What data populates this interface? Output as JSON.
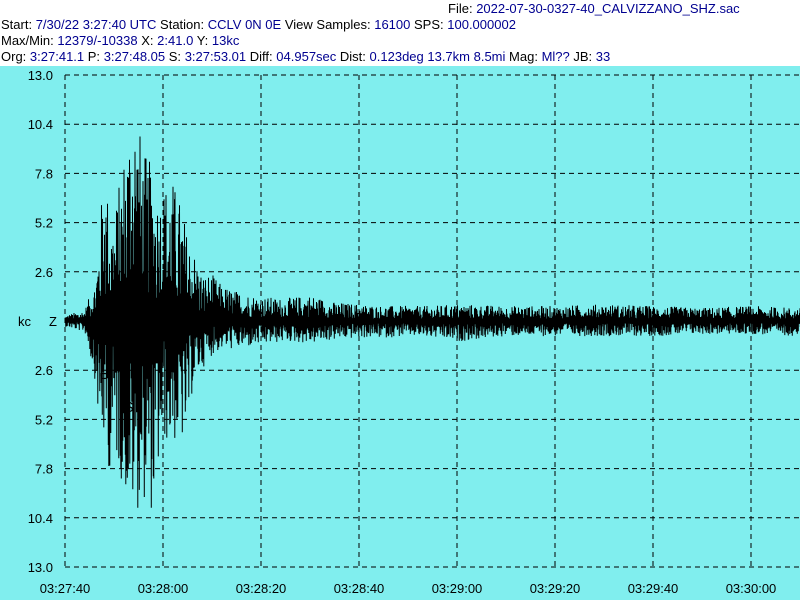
{
  "header": {
    "file_label": "File:",
    "file_name": "2022-07-30-0327-40_CALVIZZANO_SHZ.sac",
    "start_label": "Start:",
    "start_value": "7/30/22  3:27:40 UTC",
    "station_label": "Station:",
    "station_value": "CCLV 0N 0E",
    "view_samples_label": "View Samples:",
    "view_samples_value": "16100",
    "sps_label": "SPS:",
    "sps_value": "100.000002",
    "maxmin_label": "Max/Min:",
    "maxmin_value": "12379/-10338",
    "x_label": "X:",
    "x_value": "2:41.0",
    "y_label": "Y:",
    "y_value": "13kc",
    "org_label": "Org:",
    "org_value": "3:27:41.1",
    "p_label": "P:",
    "p_value": "3:27:48.05",
    "s_label": "S:",
    "s_value": "3:27:53.01",
    "diff_label": "Diff:",
    "diff_value": "04.957sec",
    "dist_label": "Dist:",
    "dist_value": "0.123deg 13.7km 8.5mi",
    "mag_label": "Mag:",
    "mag_value": "Ml??",
    "jb_label": "JB:",
    "jb_value": "33"
  },
  "colors": {
    "background": "#80eeee",
    "trace": "#000000",
    "grid": "#000000",
    "header_text": "#000090"
  },
  "chart_data": {
    "type": "line",
    "title": "",
    "xlabel": "",
    "ylabel": "kc",
    "channel": "Z",
    "xlim": [
      "03:27:40",
      "03:30:10"
    ],
    "ylim": [
      -13.0,
      13.0
    ],
    "x_tick_labels": [
      "03:27:40",
      "03:28:00",
      "03:28:20",
      "03:28:40",
      "03:29:00",
      "03:29:20",
      "03:29:40",
      "03:30:00"
    ],
    "y_tick_values": [
      13.0,
      10.4,
      7.8,
      5.2,
      2.6,
      0,
      -2.6,
      -5.2,
      -7.8,
      -10.4,
      -13.0
    ],
    "y_tick_labels": [
      "13.0",
      "10.4",
      "7.8",
      "5.2",
      "2.6",
      "",
      "2.6",
      "5.2",
      "7.8",
      "10.4",
      "13.0"
    ],
    "grid": true,
    "phase_markers": [
      {
        "label": "P",
        "time": "03:27:48.05"
      },
      {
        "label": "S",
        "time": "03:27:53.01"
      }
    ],
    "series": [
      {
        "x": [
          "03:27:40",
          "03:27:44",
          "03:27:46",
          "03:27:47",
          "03:27:48",
          "03:27:49",
          "03:27:50",
          "03:27:52",
          "03:27:54",
          "03:27:56",
          "03:27:58",
          "03:27:59",
          "03:28:00",
          "03:28:02",
          "03:28:04",
          "03:28:05",
          "03:28:06",
          "03:28:08",
          "03:28:10",
          "03:28:12",
          "03:28:15",
          "03:28:20",
          "03:28:25",
          "03:28:30",
          "03:28:35",
          "03:28:40",
          "03:28:45",
          "03:28:50",
          "03:28:55",
          "03:29:00",
          "03:29:10",
          "03:29:20",
          "03:29:30",
          "03:29:40",
          "03:29:50",
          "03:30:00",
          "03:30:10"
        ],
        "high": [
          0.3,
          0.6,
          2.0,
          4.5,
          8.7,
          6.0,
          5.5,
          9.0,
          12.3,
          9.0,
          8.2,
          6.8,
          7.4,
          7.5,
          6.0,
          4.5,
          4.0,
          2.5,
          2.5,
          1.9,
          1.6,
          1.3,
          1.2,
          1.4,
          1.0,
          0.9,
          0.8,
          0.8,
          0.8,
          0.9,
          0.8,
          0.8,
          0.9,
          0.8,
          0.7,
          0.8,
          0.7
        ],
        "low": [
          -0.3,
          -0.6,
          -3.0,
          -6.0,
          -6.7,
          -8.0,
          -7.0,
          -9.0,
          -10.3,
          -9.5,
          -10.3,
          -8.0,
          -6.5,
          -6.5,
          -6.5,
          -6.0,
          -3.5,
          -2.5,
          -1.8,
          -1.5,
          -1.5,
          -1.3,
          -1.1,
          -1.2,
          -1.0,
          -0.9,
          -0.9,
          -0.8,
          -0.9,
          -1.1,
          -0.8,
          -0.8,
          -0.8,
          -0.8,
          -0.7,
          -0.7,
          -0.8
        ]
      }
    ]
  }
}
